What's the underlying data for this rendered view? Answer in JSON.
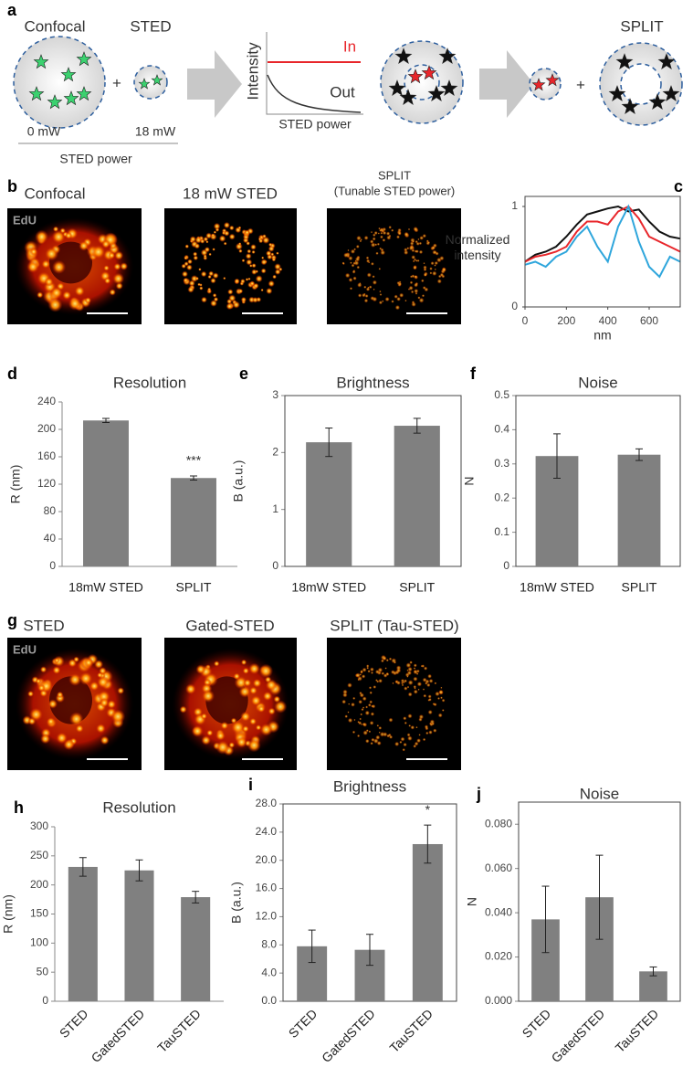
{
  "panel_labels": [
    "a",
    "b",
    "c",
    "d",
    "e",
    "f",
    "g",
    "h",
    "i",
    "j"
  ],
  "schematic": {
    "confocal_label": "Confocal",
    "sted_label": "STED",
    "plus_1": "+",
    "power_low": "0 mW",
    "power_high": "18 mW",
    "power_axis_label": "STED power",
    "plot_y_label": "Intensity",
    "in_label": "In",
    "out_label": "Out",
    "plot_x_label": "STED power",
    "split_label": "SPLIT",
    "plus_2": "+"
  },
  "images_b": {
    "titles": [
      "Confocal",
      "18 mW STED",
      "SPLIT"
    ],
    "split_subtitle": "(Tunable STED power)",
    "stain": "EdU"
  },
  "images_g": {
    "titles": [
      "STED",
      "Gated-STED",
      "SPLIT (Tau-STED)"
    ],
    "stain": "EdU"
  },
  "chart_data": [
    {
      "type": "line",
      "ylabel": [
        "Normalized",
        "intensity"
      ],
      "xlabel": "nm",
      "x": [
        0,
        50,
        100,
        150,
        200,
        250,
        300,
        350,
        400,
        450,
        500,
        550,
        600,
        650,
        700,
        750
      ],
      "xlim": [
        0,
        750
      ],
      "xticks": [
        0,
        200,
        400,
        600
      ],
      "ylim": [
        0,
        1.1
      ],
      "yticks": [
        0,
        1
      ],
      "frame": true,
      "series": [
        {
          "color": "#111111",
          "values": [
            0.45,
            0.52,
            0.55,
            0.6,
            0.7,
            0.82,
            0.92,
            0.95,
            0.98,
            1.0,
            0.95,
            0.97,
            0.85,
            0.75,
            0.7,
            0.68
          ]
        },
        {
          "color": "#e8262b",
          "values": [
            0.45,
            0.5,
            0.52,
            0.55,
            0.6,
            0.75,
            0.85,
            0.85,
            0.82,
            0.95,
            1.0,
            0.88,
            0.7,
            0.65,
            0.6,
            0.55
          ]
        },
        {
          "color": "#2fa6dc",
          "values": [
            0.42,
            0.45,
            0.4,
            0.5,
            0.55,
            0.7,
            0.8,
            0.6,
            0.45,
            0.8,
            1.0,
            0.65,
            0.4,
            0.3,
            0.5,
            0.45
          ]
        }
      ]
    },
    {
      "type": "bar",
      "title": "Resolution",
      "ylabel": "R (nm)",
      "categories": [
        "18mW STED",
        "SPLIT"
      ],
      "values": [
        213,
        129
      ],
      "errors": [
        3,
        3
      ],
      "annotations": [
        null,
        "***"
      ],
      "color": "#808080",
      "ylim": [
        0,
        240
      ],
      "yticks": [
        0,
        40,
        80,
        120,
        160,
        200,
        240
      ],
      "frame": false,
      "rotate_labels": false
    },
    {
      "type": "bar",
      "title": "Brightness",
      "ylabel": "B (a.u.)",
      "categories": [
        "18mW STED",
        "SPLIT"
      ],
      "values": [
        2.18,
        2.47
      ],
      "errors": [
        0.25,
        0.13
      ],
      "color": "#808080",
      "ylim": [
        0,
        3
      ],
      "yticks": [
        0,
        1,
        2,
        3
      ],
      "frame": true,
      "rotate_labels": false
    },
    {
      "type": "bar",
      "title": "Noise",
      "ylabel": "N",
      "categories": [
        "18mW STED",
        "SPLIT"
      ],
      "values": [
        0.323,
        0.327
      ],
      "errors": [
        0.065,
        0.017
      ],
      "color": "#808080",
      "ylim": [
        0,
        0.5
      ],
      "yticks": [
        0,
        0.1,
        0.2,
        0.3,
        0.4,
        0.5
      ],
      "frame": true,
      "rotate_labels": false
    },
    {
      "type": "bar",
      "title": "Resolution",
      "ylabel": "R (nm)",
      "categories": [
        "STED",
        "GatedSTED",
        "TauSTED"
      ],
      "values": [
        231,
        225,
        179
      ],
      "errors": [
        16,
        18,
        10
      ],
      "color": "#808080",
      "ylim": [
        0,
        300
      ],
      "yticks": [
        0,
        50,
        100,
        150,
        200,
        250,
        300
      ],
      "frame": false,
      "rotate_labels": true
    },
    {
      "type": "bar",
      "title": "Brightness",
      "ylabel": "B (a.u.)",
      "categories": [
        "STED",
        "GatedSTED",
        "TauSTED"
      ],
      "values": [
        7.8,
        7.3,
        22.3
      ],
      "errors": [
        2.3,
        2.2,
        2.7
      ],
      "annotations": [
        null,
        null,
        "*"
      ],
      "color": "#808080",
      "ylim": [
        0,
        28
      ],
      "yticks": [
        {
          "value": 0,
          "label": "0.0"
        },
        {
          "value": 4,
          "label": "4.0"
        },
        {
          "value": 8,
          "label": "8.0"
        },
        {
          "value": 12,
          "label": "12.0"
        },
        {
          "value": 16,
          "label": "16.0"
        },
        {
          "value": 20,
          "label": "20.0"
        },
        {
          "value": 24,
          "label": "24.0"
        },
        {
          "value": 28,
          "label": "28.0"
        }
      ],
      "frame": true,
      "rotate_labels": true
    },
    {
      "type": "bar",
      "title": "Noise",
      "ylabel": "N",
      "categories": [
        "STED",
        "GatedSTED",
        "TauSTED"
      ],
      "values": [
        0.037,
        0.047,
        0.0135
      ],
      "errors": [
        0.015,
        0.019,
        0.002
      ],
      "color": "#808080",
      "ylim": [
        0,
        0.09
      ],
      "yticks": [
        {
          "value": 0,
          "label": "0.000"
        },
        {
          "value": 0.02,
          "label": "0.020"
        },
        {
          "value": 0.04,
          "label": "0.040"
        },
        {
          "value": 0.06,
          "label": "0.060"
        },
        {
          "value": 0.08,
          "label": "0.080"
        }
      ],
      "frame": true,
      "rotate_labels": true
    }
  ]
}
